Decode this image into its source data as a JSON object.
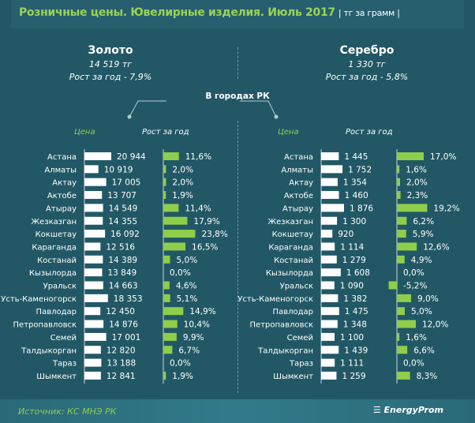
{
  "header": {
    "title": "Розничные цены. Ювелирные изделия. Июль 2017",
    "unit": "| тг за грамм |"
  },
  "gold": {
    "name": "Золото",
    "value": "14 519 тг",
    "growth": "Рост за год - 7,9%"
  },
  "silver": {
    "name": "Серебро",
    "value": "1 330 тг",
    "growth": "Рост за год - 5,8%"
  },
  "cities_label": "В городах РК",
  "col_price": "Цена",
  "col_growth": "Рост за год",
  "footer": {
    "source": "Источник: КС МНЭ РК",
    "logo": "EnergyProm"
  },
  "colors": {
    "background": "#225866",
    "price_bar": "#ffffff",
    "growth_bar": "#8fce4a",
    "title": "#9bd15a"
  },
  "chart_data": [
    {
      "type": "bar",
      "orientation": "horizontal",
      "metal": "Золото",
      "categories": [
        "Астана",
        "Алматы",
        "Актау",
        "Актобе",
        "Атырау",
        "Жезказган",
        "Кокшетау",
        "Караганда",
        "Костанай",
        "Кызылорда",
        "Уральск",
        "Усть-Каменогорск",
        "Павлодар",
        "Петропавловск",
        "Семей",
        "Талдыкорган",
        "Тараз",
        "Шымкент"
      ],
      "series": [
        {
          "name": "Цена",
          "values": [
            20944,
            10919,
            17005,
            13707,
            14549,
            14355,
            16092,
            12516,
            14389,
            13849,
            14663,
            18353,
            12450,
            14876,
            17001,
            12820,
            13188,
            12841
          ],
          "labels": [
            "20 944",
            "10 919",
            "17 005",
            "13 707",
            "14 549",
            "14 355",
            "16 092",
            "12 516",
            "14 389",
            "13 849",
            "14 663",
            "18 353",
            "12 450",
            "14 876",
            "17 001",
            "12 820",
            "13 188",
            "12 841"
          ]
        },
        {
          "name": "Рост за год",
          "values": [
            11.6,
            2.0,
            2.0,
            1.9,
            11.4,
            17.9,
            23.8,
            16.5,
            5.0,
            0.0,
            4.6,
            5.1,
            14.9,
            10.4,
            9.9,
            6.7,
            0.0,
            1.9
          ],
          "labels": [
            "11,6%",
            "2,0%",
            "2,0%",
            "1,9%",
            "11,4%",
            "17,9%",
            "23,8%",
            "16,5%",
            "5,0%",
            "0,0%",
            "4,6%",
            "5,1%",
            "14,9%",
            "10,4%",
            "9,9%",
            "6,7%",
            "0,0%",
            "1,9%"
          ]
        }
      ]
    },
    {
      "type": "bar",
      "orientation": "horizontal",
      "metal": "Серебро",
      "categories": [
        "Астана",
        "Алматы",
        "Актау",
        "Актобе",
        "Атырау",
        "Жезказган",
        "Кокшетау",
        "Караганда",
        "Костанай",
        "Кызылорда",
        "Уральск",
        "Усть-Каменогорск",
        "Павлодар",
        "Петропавловск",
        "Семей",
        "Талдыкорган",
        "Тараз",
        "Шымкент"
      ],
      "series": [
        {
          "name": "Цена",
          "values": [
            1445,
            1752,
            1354,
            1460,
            1876,
            1300,
            920,
            1114,
            1279,
            1608,
            1090,
            1382,
            1475,
            1348,
            1100,
            1439,
            1111,
            1259
          ],
          "labels": [
            "1 445",
            "1 752",
            "1 354",
            "1 460",
            "1 876",
            "1 300",
            "920",
            "1 114",
            "1 279",
            "1 608",
            "1 090",
            "1 382",
            "1 475",
            "1 348",
            "1 100",
            "1 439",
            "1 111",
            "1 259"
          ]
        },
        {
          "name": "Рост за год",
          "values": [
            17.0,
            1.6,
            2.0,
            2.3,
            19.2,
            6.2,
            5.9,
            12.6,
            4.9,
            0.0,
            -5.2,
            9.0,
            5.0,
            12.0,
            1.6,
            6.6,
            0.0,
            8.3
          ],
          "labels": [
            "17,0%",
            "1,6%",
            "2,0%",
            "2,3%",
            "19,2%",
            "6,2%",
            "5,9%",
            "12,6%",
            "4,9%",
            "0,0%",
            "-5,2%",
            "9,0%",
            "5,0%",
            "12,0%",
            "1,6%",
            "6,6%",
            "0,0%",
            "8,3%"
          ]
        }
      ]
    }
  ]
}
